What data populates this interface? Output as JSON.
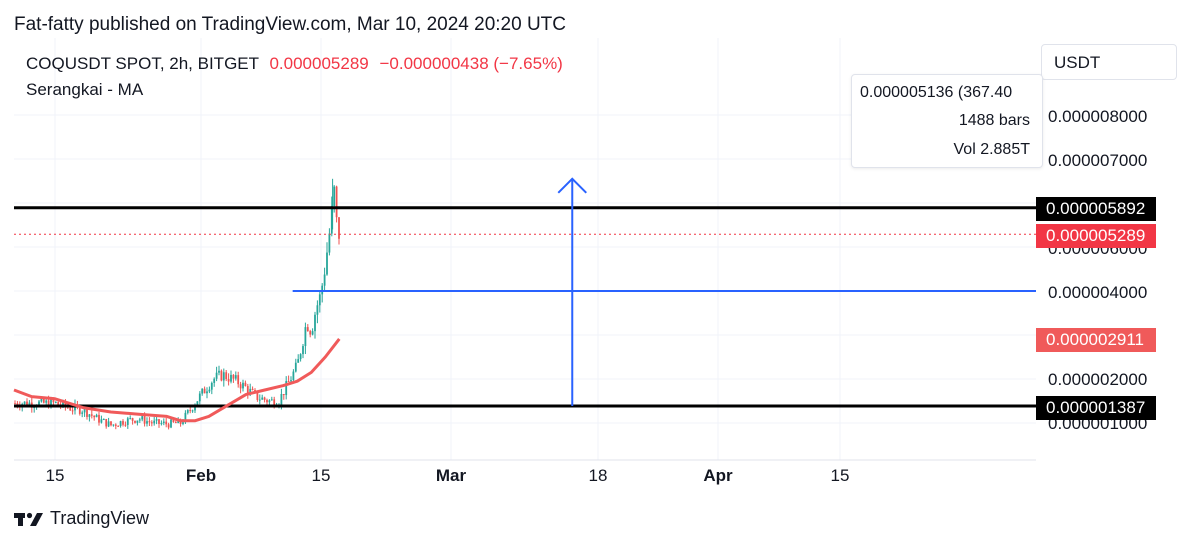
{
  "header": {
    "publisher": "Fat-fatty published on TradingView.com, Mar 10, 2024 20:20 UTC",
    "symbol": "COQUSDT SPOT, 2h, BITGET",
    "last_price": "0.000005289",
    "change": "−0.000000438 (−7.65%)",
    "indicator": "Serangkai - MA"
  },
  "currency": "USDT",
  "measure": {
    "delta": "0.000005136 (367.40",
    "bars": "1488 bars",
    "volume": "Vol 2.885T"
  },
  "price_axis": {
    "ticks": [
      "0.000008000",
      "0.000007000",
      "0.000006000",
      "0.000004000",
      "0.000002000",
      "0.000001000"
    ]
  },
  "flags": [
    {
      "label": "0.000005892",
      "value": 5.892,
      "color": "#000000"
    },
    {
      "label": "0.000005289",
      "value": 5.289,
      "color": "#f23645"
    },
    {
      "label": "0.000002911",
      "value": 2.911,
      "color": "#f05a5a"
    },
    {
      "label": "0.000001387",
      "value": 1.387,
      "color": "#000000"
    }
  ],
  "date_axis": {
    "labels": [
      {
        "text": "15",
        "bold": false
      },
      {
        "text": "Feb",
        "bold": true
      },
      {
        "text": "15",
        "bold": false
      },
      {
        "text": "Mar",
        "bold": true
      },
      {
        "text": "18",
        "bold": false
      },
      {
        "text": "Apr",
        "bold": true
      },
      {
        "text": "15",
        "bold": false
      }
    ]
  },
  "branding": {
    "logo_text": "TradingView"
  },
  "colors": {
    "up": "#26a69a",
    "down": "#ef5350",
    "ma": "#f05a5a",
    "support_resistance": "#000000",
    "target": "#2962ff",
    "last_price": "#f23645"
  },
  "chart_data": {
    "type": "line",
    "price_unit": "USDT (values ×1e-6)",
    "y_scale": "linear",
    "ylim": [
      0.6,
      9.0
    ],
    "price_path": [
      {
        "x": "2024-01-10",
        "y": 1.45
      },
      {
        "x": "2024-01-13",
        "y": 1.35
      },
      {
        "x": "2024-01-16",
        "y": 1.3
      },
      {
        "x": "2024-01-19",
        "y": 1.1
      },
      {
        "x": "2024-01-22",
        "y": 0.95
      },
      {
        "x": "2024-01-25",
        "y": 1.05
      },
      {
        "x": "2024-01-28",
        "y": 1.1
      },
      {
        "x": "2024-01-31",
        "y": 1.0
      },
      {
        "x": "2024-02-03",
        "y": 0.98
      },
      {
        "x": "2024-02-06",
        "y": 1.0
      },
      {
        "x": "2024-02-08",
        "y": 1.3
      },
      {
        "x": "2024-02-10",
        "y": 1.6
      },
      {
        "x": "2024-02-13",
        "y": 2.0
      },
      {
        "x": "2024-02-15",
        "y": 2.1
      },
      {
        "x": "2024-02-18",
        "y": 1.95
      },
      {
        "x": "2024-02-20",
        "y": 1.8
      },
      {
        "x": "2024-02-22",
        "y": 1.6
      },
      {
        "x": "2024-02-25",
        "y": 1.5
      },
      {
        "x": "2024-02-27",
        "y": 1.5
      },
      {
        "x": "2024-02-29",
        "y": 1.9
      },
      {
        "x": "2024-03-02",
        "y": 2.3
      },
      {
        "x": "2024-03-04",
        "y": 3.3
      },
      {
        "x": "2024-03-05",
        "y": 3.1
      },
      {
        "x": "2024-03-06",
        "y": 3.6
      },
      {
        "x": "2024-03-07",
        "y": 3.9
      },
      {
        "x": "2024-03-08",
        "y": 4.6
      },
      {
        "x": "2024-03-09",
        "y": 5.4
      },
      {
        "x": "2024-03-10",
        "y": 6.3
      },
      {
        "x": "2024-03-10",
        "y": 5.7
      },
      {
        "x": "2024-03-11",
        "y": 5.289
      }
    ],
    "series": [
      {
        "name": "Serangkai - MA",
        "points": [
          {
            "x": "2024-01-01",
            "y": 1.75
          },
          {
            "x": "2024-01-05",
            "y": 1.6
          },
          {
            "x": "2024-01-10",
            "y": 1.55
          },
          {
            "x": "2024-01-16",
            "y": 1.35
          },
          {
            "x": "2024-01-22",
            "y": 1.25
          },
          {
            "x": "2024-01-28",
            "y": 1.2
          },
          {
            "x": "2024-02-03",
            "y": 1.15
          },
          {
            "x": "2024-02-06",
            "y": 1.05
          },
          {
            "x": "2024-02-09",
            "y": 1.05
          },
          {
            "x": "2024-02-12",
            "y": 1.15
          },
          {
            "x": "2024-02-16",
            "y": 1.4
          },
          {
            "x": "2024-02-20",
            "y": 1.65
          },
          {
            "x": "2024-02-24",
            "y": 1.75
          },
          {
            "x": "2024-02-28",
            "y": 1.85
          },
          {
            "x": "2024-03-02",
            "y": 1.95
          },
          {
            "x": "2024-03-05",
            "y": 2.15
          },
          {
            "x": "2024-03-08",
            "y": 2.5
          },
          {
            "x": "2024-03-11",
            "y": 2.911
          }
        ]
      }
    ],
    "horizontal_lines": [
      {
        "y": 5.892,
        "color": "#000000",
        "from": "2024-01-01",
        "to": "right-edge"
      },
      {
        "y": 1.387,
        "color": "#000000",
        "from": "2024-01-01",
        "to": "right-edge"
      },
      {
        "y": 4.0,
        "color": "#2962ff",
        "from": "2024-03-01",
        "to": "right-edge"
      },
      {
        "y": 5.289,
        "color": "#f23645",
        "style": "dotted",
        "from": "2024-01-01",
        "to": "right-edge"
      }
    ],
    "measure_arrow": {
      "x": "2024-04-30",
      "from": 1.387,
      "to": 6.55,
      "color": "#2962ff"
    },
    "grid": true
  }
}
